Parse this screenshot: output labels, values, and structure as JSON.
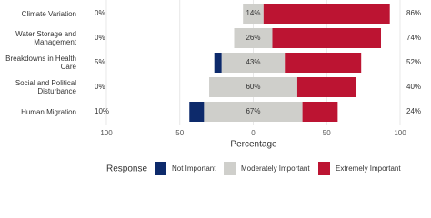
{
  "chart_data": {
    "type": "diverging_bar",
    "x_label": "Percentage",
    "legend_title": "Response",
    "categories": [
      "Climate Variation",
      "Water Storage and Management",
      "Breakdowns in Health Care",
      "Social and Political Disturbance",
      "Human Migration"
    ],
    "series": [
      {
        "name": "Not Important",
        "color": "#0d2a6b",
        "values": [
          0,
          0,
          5,
          0,
          10
        ],
        "value_labels": [
          "0%",
          "0%",
          "5%",
          "0%",
          "10%"
        ]
      },
      {
        "name": "Moderately Important",
        "color": "#cfcfcb",
        "values": [
          14,
          26,
          43,
          60,
          67
        ],
        "value_labels": [
          "14%",
          "26%",
          "43%",
          "60%",
          "67%"
        ]
      },
      {
        "name": "Extremely Important",
        "color": "#bc1432",
        "values": [
          86,
          74,
          52,
          40,
          24
        ],
        "value_labels": [
          "86%",
          "74%",
          "52%",
          "40%",
          "24%"
        ]
      }
    ],
    "xlim": [
      -100,
      100
    ],
    "xticks": [
      {
        "value": -100,
        "label": "100"
      },
      {
        "value": -50,
        "label": "50"
      },
      0,
      50,
      100
    ],
    "grid": true,
    "legend_position": "bottom"
  }
}
